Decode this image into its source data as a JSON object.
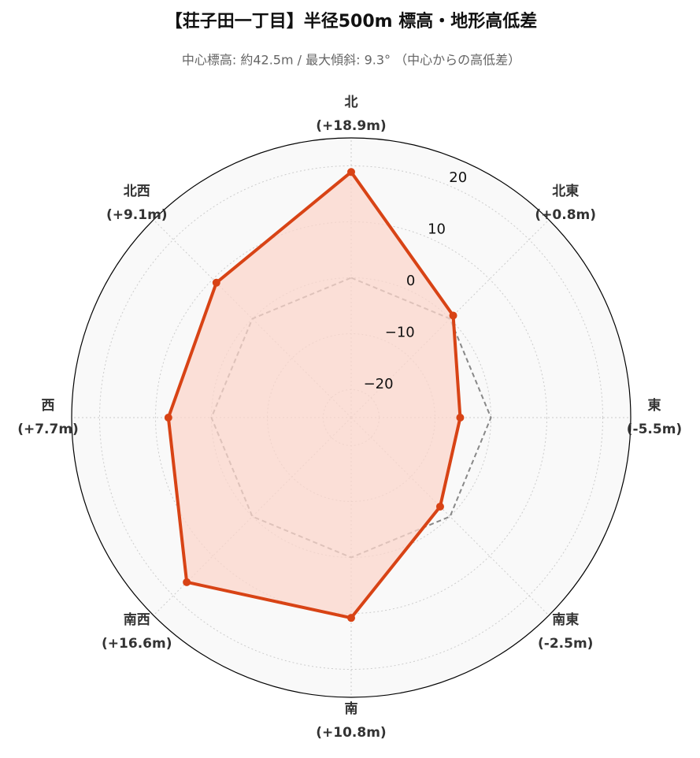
{
  "chart_data": {
    "type": "radar",
    "title": "【荘子田一丁目】半径500m 標高・地形高低差",
    "subtitle": "中心標高: 約42.5m / 最大傾斜: 9.3° （中心からの高低差）",
    "categories": [
      "北",
      "北東",
      "東",
      "南東",
      "南",
      "南西",
      "西",
      "北西"
    ],
    "values": [
      18.9,
      0.8,
      -5.5,
      -2.5,
      10.8,
      16.6,
      7.7,
      9.1
    ],
    "value_labels": [
      "(+18.9m)",
      "(+0.8m)",
      "(-5.5m)",
      "(-2.5m)",
      "(+10.8m)",
      "(+16.6m)",
      "(+7.7m)",
      "(+9.1m)"
    ],
    "color": "#d84315",
    "fill": "#fbd5cb",
    "baseline": 0,
    "baseline_color": "#888888",
    "rlim": [
      -25,
      25
    ],
    "rticks": [
      {
        "value": -20,
        "label": "−20"
      },
      {
        "value": -10,
        "label": "−10"
      },
      0,
      10,
      20
    ],
    "grid": true
  }
}
